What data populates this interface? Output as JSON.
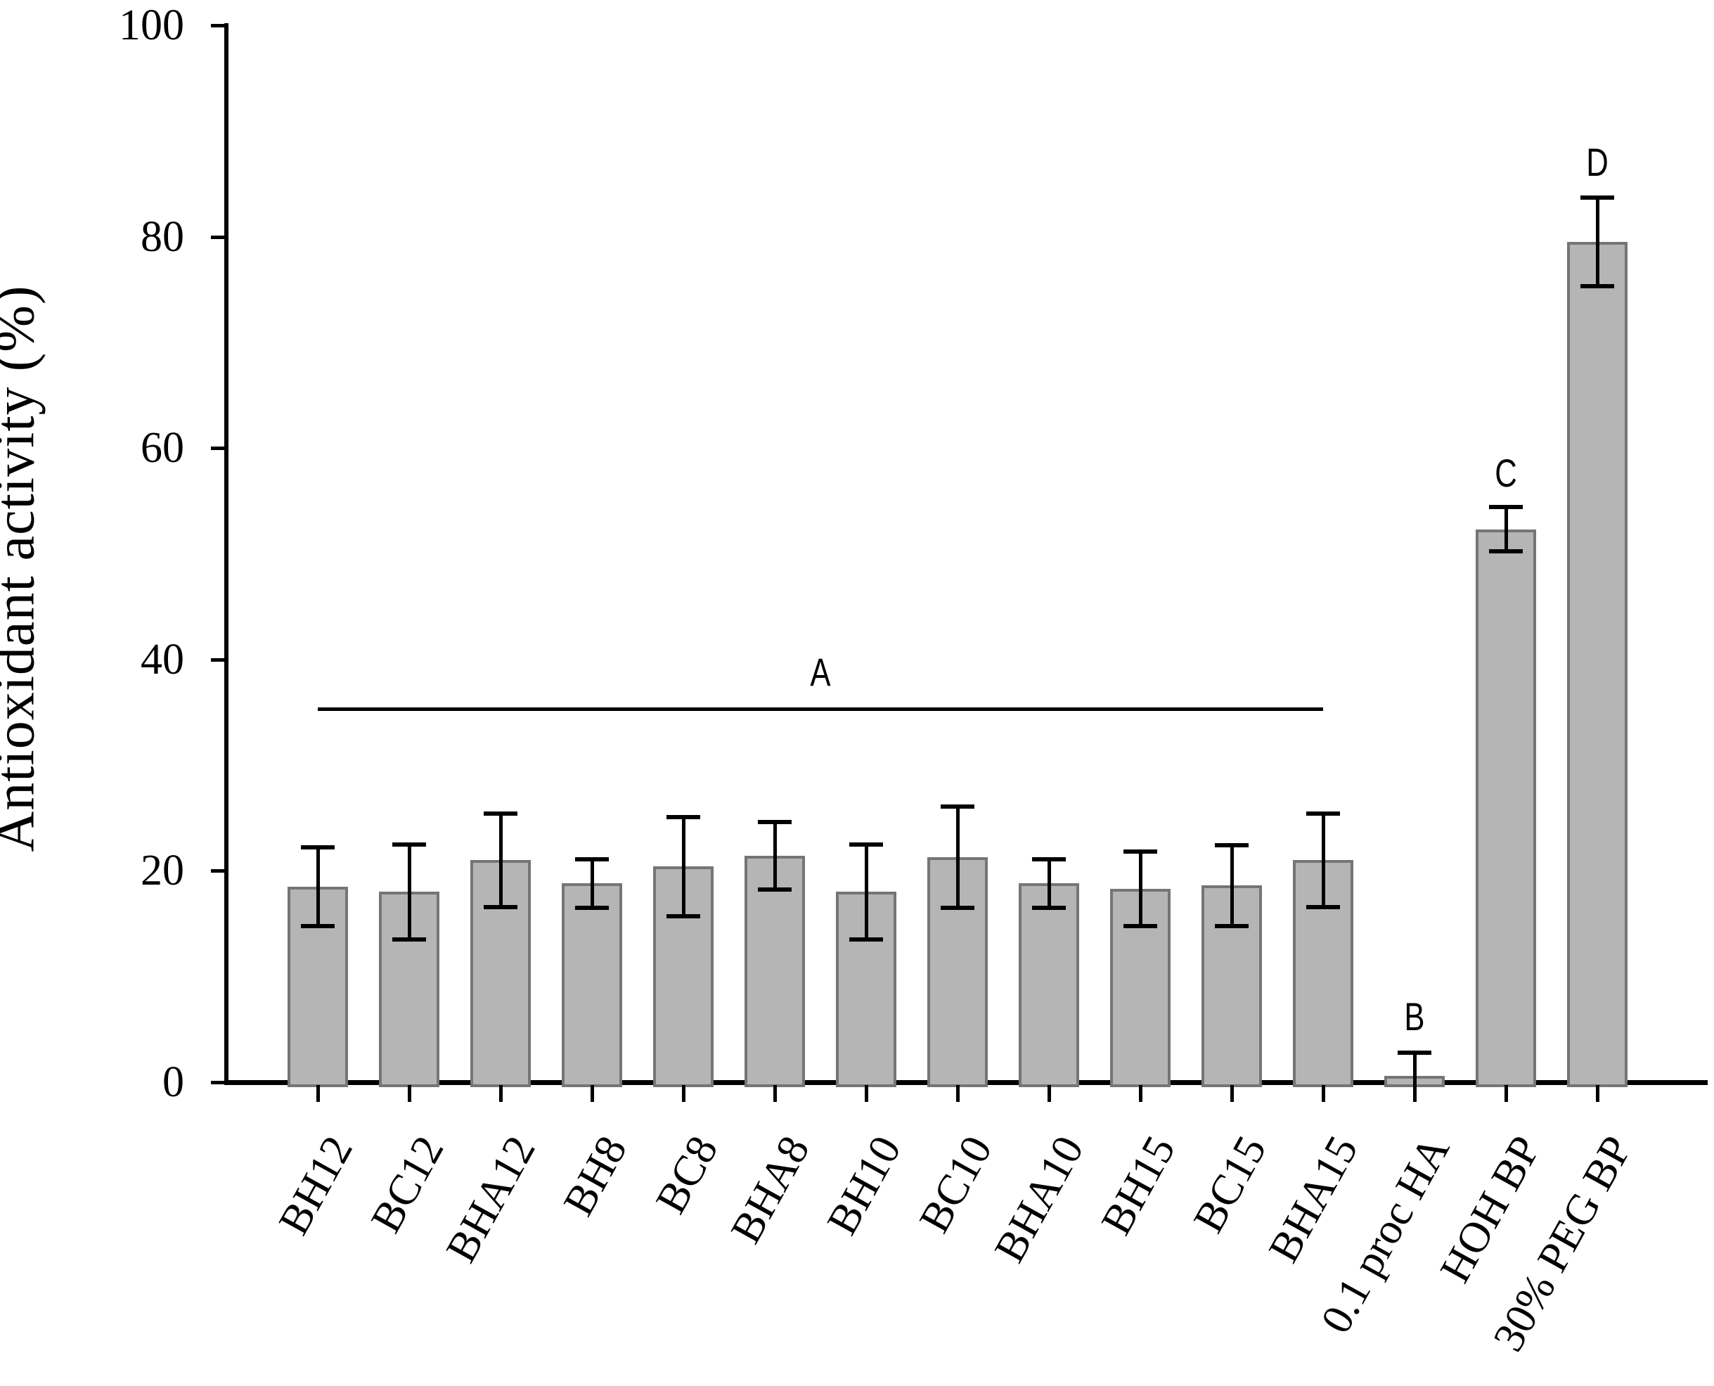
{
  "chart_data": {
    "type": "bar",
    "title": "",
    "xlabel": "",
    "ylabel": "Antioxidant activity (%)",
    "ylim": [
      0,
      100
    ],
    "yticks": [
      0,
      20,
      40,
      60,
      80,
      100
    ],
    "grid": false,
    "legend": false,
    "bar_fill_color": "#b5b5b5",
    "bar_edge_color": "#757575",
    "error_bar_color": "#000000",
    "categories": [
      "BH12",
      "BC12",
      "BHA12",
      "BH8",
      "BC8",
      "BHA8",
      "BH10",
      "BC10",
      "BHA10",
      "BH15",
      "BC15",
      "BHA15",
      "0.1 proc HA",
      "HOH BP",
      "30% PEG BP"
    ],
    "values": [
      18.5,
      18.0,
      21.0,
      18.8,
      20.4,
      21.4,
      18.0,
      21.3,
      18.8,
      18.3,
      18.6,
      21.0,
      0.6,
      52.3,
      79.5
    ],
    "errors": [
      3.7,
      4.5,
      4.4,
      2.3,
      4.7,
      3.2,
      4.5,
      4.8,
      2.3,
      3.5,
      3.8,
      4.4,
      2.2,
      2.1,
      4.2
    ],
    "significance": {
      "group_line": {
        "label": "A",
        "from": "BH12",
        "to": "BHA15",
        "line_y": 35.3,
        "label_y": 37.6
      },
      "letters": [
        {
          "label": "B",
          "category": "0.1 proc HA",
          "label_y": 5.0
        },
        {
          "label": "C",
          "category": "HOH BP",
          "label_y": 56.4
        },
        {
          "label": "D",
          "category": "30% PEG BP",
          "label_y": 85.8
        }
      ]
    }
  }
}
